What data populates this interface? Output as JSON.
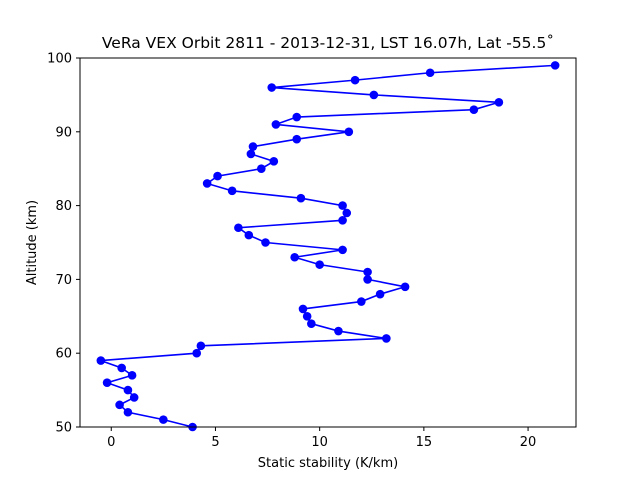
{
  "chart_data": {
    "type": "line",
    "title": "VeRa VEX Orbit 2811 - 2013-12-31, LST 16.07h, Lat -55.5˚",
    "xlabel": "Static stability (K/km)",
    "ylabel": "Altitude (km)",
    "xlim": [
      -1.5,
      22.3
    ],
    "ylim": [
      50,
      100
    ],
    "xticks": [
      0,
      5,
      10,
      15,
      20
    ],
    "yticks": [
      50,
      60,
      70,
      80,
      90,
      100
    ],
    "grid": false,
    "marker": "circle",
    "color": "#0000ff",
    "series": [
      {
        "x": [
          3.9,
          2.5,
          0.8,
          0.4,
          1.1,
          0.8,
          -0.2,
          1.0,
          0.5,
          -0.5,
          4.1,
          4.3,
          13.2,
          10.9,
          9.6,
          9.4,
          9.2,
          12.0,
          12.9,
          14.1,
          12.3,
          12.3,
          10.0,
          8.8,
          11.1,
          7.4,
          6.6,
          6.1,
          11.1,
          11.3,
          11.1,
          9.1,
          5.8,
          4.6,
          5.1,
          7.2,
          7.8,
          6.7,
          6.8,
          8.9,
          11.4,
          7.9,
          8.9,
          17.4,
          18.6,
          12.6,
          7.7,
          11.7,
          15.3,
          21.3
        ],
        "y": [
          50,
          51,
          52,
          53,
          54,
          55,
          56,
          57,
          58,
          59,
          60,
          61,
          62,
          63,
          64,
          65,
          66,
          67,
          68,
          69,
          70,
          71,
          72,
          73,
          74,
          75,
          76,
          77,
          78,
          79,
          80,
          81,
          82,
          83,
          84,
          85,
          86,
          87,
          88,
          89,
          90,
          91,
          92,
          93,
          94,
          95,
          96,
          97,
          98,
          99
        ]
      }
    ]
  }
}
